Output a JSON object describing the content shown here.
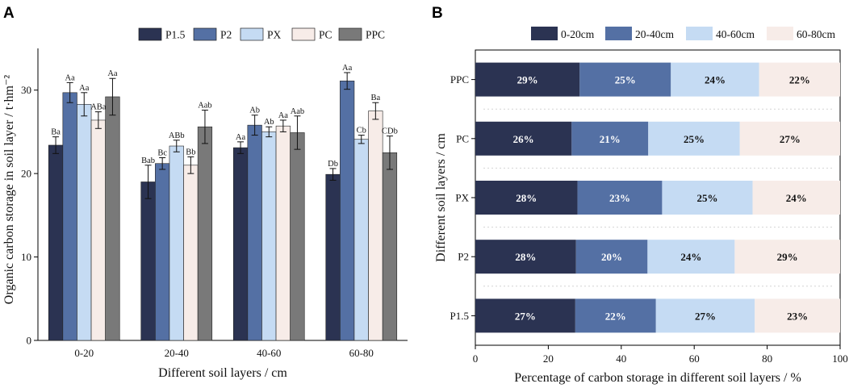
{
  "panel_a": {
    "letter": "A"
  },
  "panel_b": {
    "letter": "B"
  },
  "chart_data": [
    {
      "type": "bar",
      "title": "",
      "xlabel": "Different soil layers / cm",
      "ylabel": "Organic carbon storage in soil layer / t·hm⁻²",
      "ylim": [
        0,
        35
      ],
      "yticks": [
        0,
        10,
        20,
        30
      ],
      "legend_position": "top",
      "categories": [
        "0-20",
        "20-40",
        "40-60",
        "60-80"
      ],
      "series": [
        {
          "name": "P1.5",
          "color": "#2b3352",
          "values": [
            23.4,
            19.0,
            23.1,
            19.9
          ],
          "errors": [
            1.0,
            2.0,
            0.7,
            0.7
          ],
          "labels": [
            "Ba",
            "Bab",
            "Aa",
            "Db"
          ]
        },
        {
          "name": "P2",
          "color": "#5470a4",
          "values": [
            29.7,
            21.2,
            25.8,
            31.1
          ],
          "errors": [
            1.2,
            0.7,
            1.2,
            1.0
          ],
          "labels": [
            "Aa",
            "Bc",
            "Ab",
            "Aa"
          ]
        },
        {
          "name": "PX",
          "color": "#c5dbf3",
          "values": [
            28.3,
            23.3,
            25.0,
            24.1
          ],
          "errors": [
            1.4,
            0.7,
            0.6,
            0.5
          ],
          "labels": [
            "Aa",
            "ABb",
            "Ab",
            "Cb"
          ]
        },
        {
          "name": "PC",
          "color": "#f7ece8",
          "values": [
            26.4,
            21.0,
            25.7,
            27.5
          ],
          "errors": [
            1.0,
            1.0,
            0.7,
            1.0
          ],
          "labels": [
            "ABa",
            "Bb",
            "Aa",
            "Ba"
          ]
        },
        {
          "name": "PPC",
          "color": "#797979",
          "values": [
            29.2,
            25.6,
            24.9,
            22.5
          ],
          "errors": [
            2.2,
            2.0,
            2.0,
            2.0
          ],
          "labels": [
            "Aa",
            "Aab",
            "Aab",
            "CDb"
          ]
        }
      ]
    },
    {
      "type": "bar",
      "orientation": "horizontal",
      "stacked": true,
      "title": "",
      "xlabel": "Percentage of carbon storage in different soil layers / %",
      "ylabel": "Different soil layers / cm",
      "xlim": [
        0,
        100
      ],
      "xticks": [
        0,
        20,
        40,
        60,
        80,
        100
      ],
      "legend_position": "top",
      "categories": [
        "PPC",
        "PC",
        "PX",
        "P2",
        "P1.5"
      ],
      "series": [
        {
          "name": "0-20cm",
          "color": "#2b3352",
          "text_color": "#ffffff",
          "values": [
            28.6,
            26.4,
            28.0,
            27.6,
            27.4
          ],
          "labels": [
            "29%",
            "26%",
            "28%",
            "28%",
            "27%"
          ]
        },
        {
          "name": "20-40cm",
          "color": "#5470a4",
          "text_color": "#ffffff",
          "values": [
            25.0,
            21.0,
            23.2,
            19.6,
            22.1
          ],
          "labels": [
            "25%",
            "21%",
            "23%",
            "20%",
            "22%"
          ]
        },
        {
          "name": "40-60cm",
          "color": "#c5dbf3",
          "text_color": "#111111",
          "values": [
            24.2,
            25.1,
            24.8,
            23.9,
            27.1
          ],
          "labels": [
            "24%",
            "25%",
            "25%",
            "24%",
            "27%"
          ]
        },
        {
          "name": "60-80cm",
          "color": "#f7ece8",
          "text_color": "#111111",
          "values": [
            22.2,
            27.5,
            24.0,
            28.9,
            23.4
          ],
          "labels": [
            "22%",
            "27%",
            "24%",
            "29%",
            "23%"
          ]
        }
      ]
    }
  ]
}
